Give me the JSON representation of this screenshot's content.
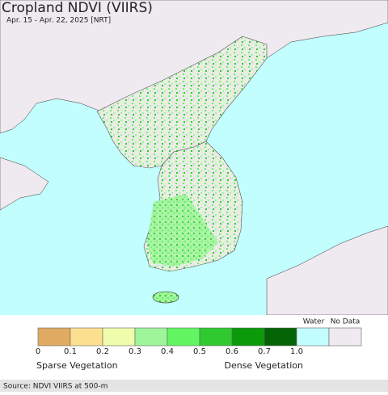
{
  "header": {
    "title": "Cropland NDVI (VIIRS)",
    "subtitle": "Apr. 15 - Apr. 22, 2025 [NRT]"
  },
  "legend": {
    "colors": [
      "#e1aa62",
      "#fde08f",
      "#eefcac",
      "#9ef59a",
      "#62f762",
      "#30c930",
      "#0a9a0a",
      "#046304",
      "#c2fefe",
      "#efeaef"
    ],
    "ticks": [
      "0",
      "0.1",
      "0.2",
      "0.3",
      "0.4",
      "0.5",
      "0.6",
      "0.7",
      "1.0"
    ],
    "water_label": "Water",
    "nodata_label": "No Data",
    "sparse_label": "Sparse Vegetation",
    "dense_label": "Dense Vegetation"
  },
  "footer": {
    "source": "Source: NDVI VIIRS at 500-m"
  }
}
